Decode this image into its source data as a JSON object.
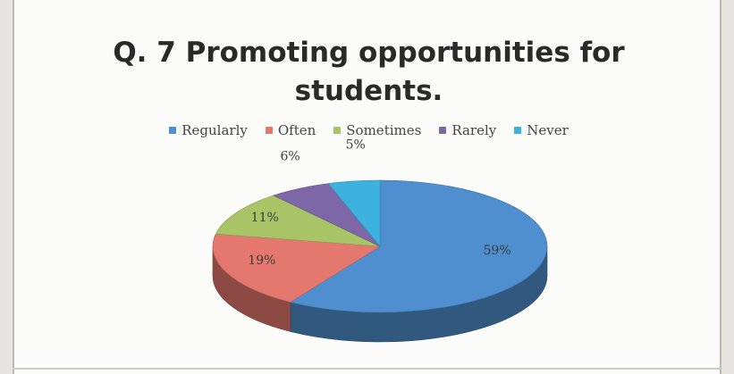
{
  "chart_data": {
    "type": "pie",
    "title": "Q. 7 Promoting opportunities for students.",
    "title_lines": [
      "Q. 7 Promoting opportunities for",
      "students."
    ],
    "categories": [
      "Regularly",
      "Often",
      "Sometimes",
      "Rarely",
      "Never"
    ],
    "values": [
      59,
      19,
      11,
      6,
      5
    ],
    "labels": [
      "59%",
      "19%",
      "11%",
      "6%",
      "5%"
    ],
    "colors": [
      "#4f8fcf",
      "#e4786e",
      "#a8c466",
      "#7d67a6",
      "#3db2de"
    ],
    "legend_position": "top",
    "style": "3d"
  }
}
